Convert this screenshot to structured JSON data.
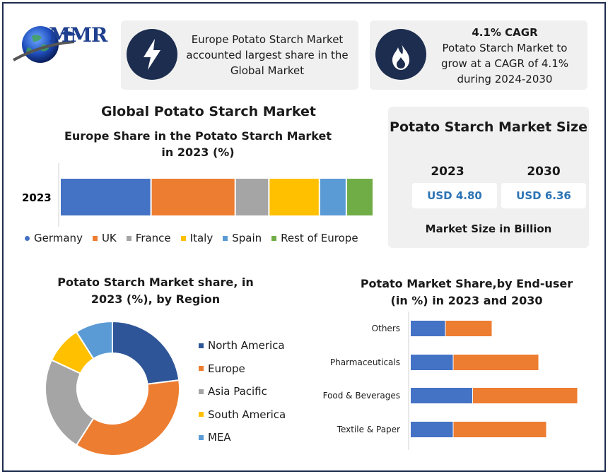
{
  "brand": {
    "logo_text": "MMR"
  },
  "info": {
    "europe_text": "Europe Potato Starch Market accounted largest share in the Global Market",
    "europe_icon": "lightning-icon",
    "cagr_title": "4.1% CAGR",
    "cagr_text": "Potato Starch Market to grow at a CAGR of 4.1% during 2024-2030",
    "cagr_icon": "flame-icon"
  },
  "headings": {
    "main_title": "Global Potato Starch Market",
    "europe_chart_title": "Europe Share in the Potato Starch Market in 2023 (%)",
    "region_chart_title": "Potato Starch Market share, in 2023 (%), by Region",
    "enduser_chart_title": "Potato Market Share,by End-user (in %) in 2023 and 2030"
  },
  "market_size": {
    "title": "Potato Starch Market Size",
    "years": [
      {
        "year": "2023",
        "value": "USD 4.80"
      },
      {
        "year": "2030",
        "value": "USD 6.36"
      }
    ],
    "caption": "Market Size in Billion"
  },
  "chart_data": [
    {
      "type": "bar",
      "orientation": "horizontal",
      "stacked": true,
      "categories": [
        "2023"
      ],
      "series": [
        {
          "name": "Germany",
          "values": [
            27
          ],
          "color": "#4472c4"
        },
        {
          "name": "UK",
          "values": [
            25
          ],
          "color": "#ed7d31"
        },
        {
          "name": "France",
          "values": [
            10
          ],
          "color": "#a5a5a5"
        },
        {
          "name": "Italy",
          "values": [
            15
          ],
          "color": "#ffc000"
        },
        {
          "name": "Spain",
          "values": [
            8
          ],
          "color": "#5b9bd5"
        },
        {
          "name": "Rest of Europe",
          "values": [
            8
          ],
          "color": "#70ad47"
        }
      ],
      "legend": "bottom",
      "grid": false
    },
    {
      "type": "pie",
      "donut": true,
      "slices": [
        {
          "label": "North America",
          "value": 23,
          "color": "#2e5597"
        },
        {
          "label": "Europe",
          "value": 36,
          "color": "#ed7d31"
        },
        {
          "label": "Asia Pacific",
          "value": 23,
          "color": "#a5a5a5"
        },
        {
          "label": "South America",
          "value": 9,
          "color": "#ffc000"
        },
        {
          "label": "MEA",
          "value": 9,
          "color": "#5b9bd5"
        }
      ],
      "legend": "right"
    },
    {
      "type": "bar",
      "orientation": "horizontal",
      "stacked": true,
      "categories": [
        "Others",
        "Pharmaceuticals",
        "Food & Beverages",
        "Textile & Paper"
      ],
      "series": [
        {
          "values": [
            9,
            11,
            16,
            11
          ],
          "color": "#4472c4"
        },
        {
          "values": [
            12,
            22,
            27,
            24
          ],
          "color": "#ed7d31"
        }
      ],
      "legend": "none",
      "grid": false
    }
  ]
}
